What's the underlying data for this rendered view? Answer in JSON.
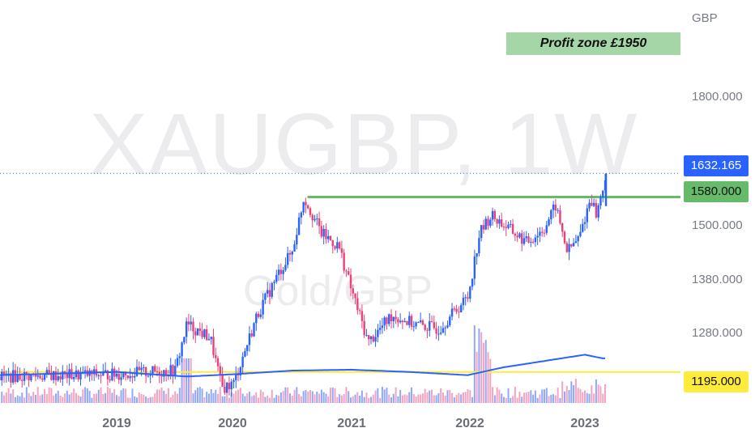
{
  "chart_data": {
    "type": "candlestick",
    "symbol_watermark": "XAUGBP, 1W",
    "subtitle_watermark": "Gold/GBP",
    "currency_label": "GBP",
    "y_ticks": [
      "1800.000",
      "1500.000",
      "1380.000",
      "1280.000"
    ],
    "x_ticks": [
      "2019",
      "2020",
      "2021",
      "2022",
      "2023"
    ],
    "annotation": "Profit zone £1950",
    "price_lines": [
      {
        "label": "1632.165",
        "value": 1632.165,
        "color": "#2962ff",
        "style": "dotted"
      },
      {
        "label": "1580.000",
        "value": 1580.0,
        "color": "#66bb6a",
        "style": "solid"
      },
      {
        "label": "1195.000",
        "value": 1195.0,
        "color": "#ffeb3b",
        "style": "solid"
      }
    ],
    "price_series": [
      {
        "t": 2018.0,
        "v": 1185
      },
      {
        "t": 2019.0,
        "v": 1190
      },
      {
        "t": 2019.5,
        "v": 1198
      },
      {
        "t": 2019.6,
        "v": 1300
      },
      {
        "t": 2019.8,
        "v": 1270
      },
      {
        "t": 2019.9,
        "v": 1160
      },
      {
        "t": 2020.0,
        "v": 1170
      },
      {
        "t": 2020.2,
        "v": 1320
      },
      {
        "t": 2020.4,
        "v": 1420
      },
      {
        "t": 2020.5,
        "v": 1460
      },
      {
        "t": 2020.6,
        "v": 1580
      },
      {
        "t": 2020.75,
        "v": 1500
      },
      {
        "t": 2020.9,
        "v": 1470
      },
      {
        "t": 2021.0,
        "v": 1380
      },
      {
        "t": 2021.15,
        "v": 1260
      },
      {
        "t": 2021.35,
        "v": 1320
      },
      {
        "t": 2021.55,
        "v": 1300
      },
      {
        "t": 2021.75,
        "v": 1290
      },
      {
        "t": 2022.0,
        "v": 1360
      },
      {
        "t": 2022.1,
        "v": 1500
      },
      {
        "t": 2022.2,
        "v": 1540
      },
      {
        "t": 2022.3,
        "v": 1520
      },
      {
        "t": 2022.5,
        "v": 1480
      },
      {
        "t": 2022.65,
        "v": 1510
      },
      {
        "t": 2022.75,
        "v": 1560
      },
      {
        "t": 2022.85,
        "v": 1460
      },
      {
        "t": 2022.95,
        "v": 1490
      },
      {
        "t": 2023.05,
        "v": 1580
      },
      {
        "t": 2023.1,
        "v": 1540
      },
      {
        "t": 2023.18,
        "v": 1632
      }
    ],
    "moving_average": [
      {
        "t": 2018.0,
        "v": 1188
      },
      {
        "t": 2019.0,
        "v": 1195
      },
      {
        "t": 2019.6,
        "v": 1185
      },
      {
        "t": 2020.0,
        "v": 1190
      },
      {
        "t": 2020.5,
        "v": 1198
      },
      {
        "t": 2021.0,
        "v": 1200
      },
      {
        "t": 2021.5,
        "v": 1195
      },
      {
        "t": 2022.0,
        "v": 1188
      },
      {
        "t": 2022.3,
        "v": 1205
      },
      {
        "t": 2022.8,
        "v": 1225
      },
      {
        "t": 2023.0,
        "v": 1233
      },
      {
        "t": 2023.15,
        "v": 1225
      }
    ],
    "colors": {
      "up": "#2962ff",
      "down": "#ec407a",
      "volume_up": "#90a8f8",
      "volume_down": "#f4a4c0"
    }
  }
}
